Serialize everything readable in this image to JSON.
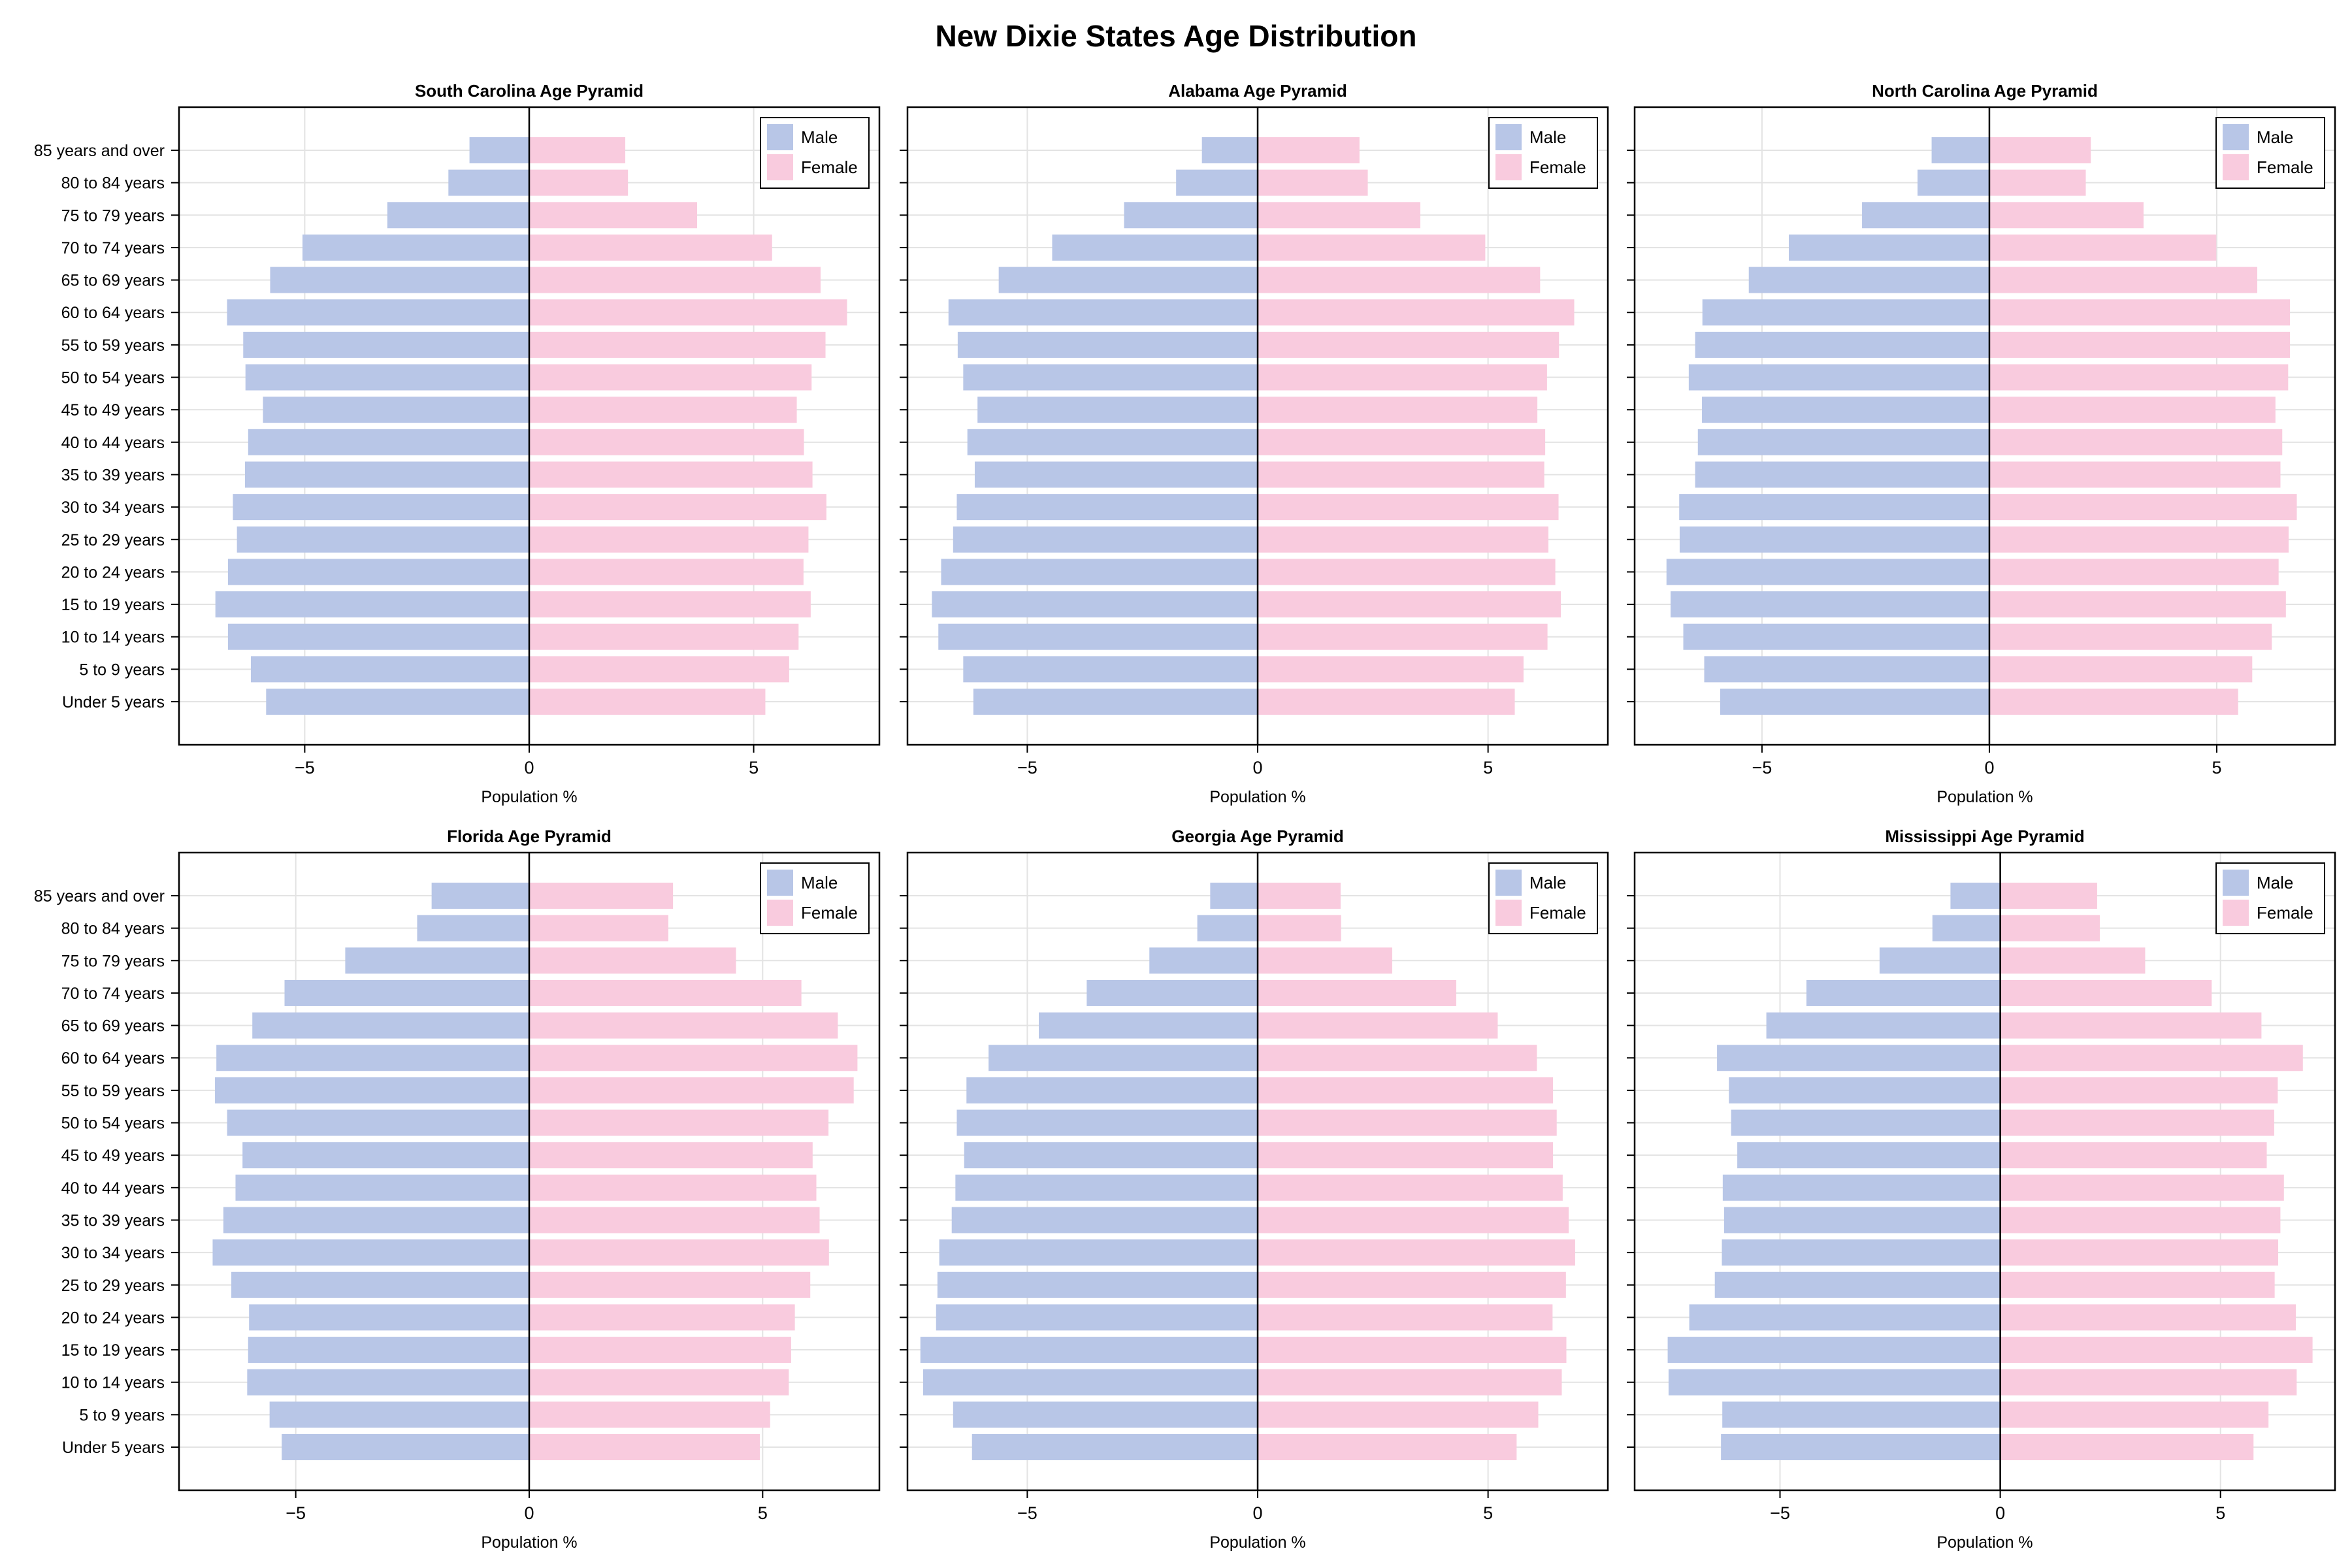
{
  "figure": {
    "title": "New Dixie States Age Distribution"
  },
  "colors": {
    "male": "#b8c6e7",
    "female": "#f9cbde",
    "grid": "#e3e3e3",
    "frame": "#000000"
  },
  "chart_data": [
    {
      "type": "bar",
      "title": "South Carolina Age Pyramid",
      "xlabel": "Population %",
      "xlim": [
        -7.8,
        7.8
      ],
      "xticks": [
        -5,
        0,
        5
      ],
      "xtick_labels": [
        "−5",
        "0",
        "5"
      ],
      "legend": "top-right",
      "categories": [
        "85 years and over",
        "80 to 84 years",
        "75 to 79 years",
        "70 to 74 years",
        "65 to 69 years",
        "60 to 64 years",
        "55 to 59 years",
        "50 to 54 years",
        "45 to 49 years",
        "40 to 44 years",
        "35 to 39 years",
        "30 to 34 years",
        "25 to 29 years",
        "20 to 24 years",
        "15 to 19 years",
        "10 to 14 years",
        "5 to 9 years",
        "Under 5 years"
      ],
      "series": [
        {
          "name": "Male",
          "values": [
            -1.33,
            -1.8,
            -3.16,
            -5.05,
            -5.77,
            -6.73,
            -6.37,
            -6.32,
            -5.93,
            -6.26,
            -6.33,
            -6.6,
            -6.51,
            -6.71,
            -6.99,
            -6.71,
            -6.2,
            -5.86
          ]
        },
        {
          "name": "Female",
          "values": [
            2.14,
            2.2,
            3.74,
            5.41,
            6.49,
            7.08,
            6.6,
            6.29,
            5.96,
            6.12,
            6.31,
            6.62,
            6.22,
            6.11,
            6.27,
            6.0,
            5.79,
            5.26
          ]
        }
      ]
    },
    {
      "type": "bar",
      "title": "Alabama Age Pyramid",
      "xlabel": "Population %",
      "xlim": [
        -7.6,
        7.6
      ],
      "xticks": [
        -5,
        0,
        5
      ],
      "xtick_labels": [
        "−5",
        "0",
        "5"
      ],
      "legend": "top-right",
      "categories": [
        "85 years and over",
        "80 to 84 years",
        "75 to 79 years",
        "70 to 74 years",
        "65 to 69 years",
        "60 to 64 years",
        "55 to 59 years",
        "50 to 54 years",
        "45 to 49 years",
        "40 to 44 years",
        "35 to 39 years",
        "30 to 34 years",
        "25 to 29 years",
        "20 to 24 years",
        "15 to 19 years",
        "10 to 14 years",
        "5 to 9 years",
        "Under 5 years"
      ],
      "series": [
        {
          "name": "Male",
          "values": [
            -1.21,
            -1.77,
            -2.9,
            -4.46,
            -5.62,
            -6.71,
            -6.51,
            -6.39,
            -6.08,
            -6.3,
            -6.14,
            -6.53,
            -6.61,
            -6.87,
            -7.07,
            -6.93,
            -6.39,
            -6.17
          ]
        },
        {
          "name": "Female",
          "values": [
            2.21,
            2.39,
            3.53,
            4.94,
            6.13,
            6.87,
            6.54,
            6.28,
            6.07,
            6.24,
            6.22,
            6.53,
            6.31,
            6.46,
            6.58,
            6.29,
            5.77,
            5.58
          ]
        }
      ]
    },
    {
      "type": "bar",
      "title": "North Carolina Age Pyramid",
      "xlabel": "Population %",
      "xlim": [
        -7.8,
        7.6
      ],
      "xticks": [
        -5,
        0,
        5
      ],
      "xtick_labels": [
        "−5",
        "0",
        "5"
      ],
      "legend": "top-right",
      "categories": [
        "85 years and over",
        "80 to 84 years",
        "75 to 79 years",
        "70 to 74 years",
        "65 to 69 years",
        "60 to 64 years",
        "55 to 59 years",
        "50 to 54 years",
        "45 to 49 years",
        "40 to 44 years",
        "35 to 39 years",
        "30 to 34 years",
        "25 to 29 years",
        "20 to 24 years",
        "15 to 19 years",
        "10 to 14 years",
        "5 to 9 years",
        "Under 5 years"
      ],
      "series": [
        {
          "name": "Male",
          "values": [
            -1.27,
            -1.58,
            -2.8,
            -4.41,
            -5.29,
            -6.31,
            -6.47,
            -6.61,
            -6.32,
            -6.41,
            -6.47,
            -6.82,
            -6.81,
            -7.1,
            -7.01,
            -6.73,
            -6.27,
            -5.92
          ]
        },
        {
          "name": "Female",
          "values": [
            2.23,
            2.12,
            3.39,
            4.99,
            5.89,
            6.61,
            6.61,
            6.57,
            6.29,
            6.44,
            6.4,
            6.76,
            6.58,
            6.36,
            6.52,
            6.21,
            5.78,
            5.47
          ]
        }
      ]
    },
    {
      "type": "bar",
      "title": "Florida Age Pyramid",
      "xlabel": "Population %",
      "xlim": [
        -7.5,
        7.5
      ],
      "xticks": [
        -5,
        0,
        5
      ],
      "xtick_labels": [
        "−5",
        "0",
        "5"
      ],
      "legend": "top-right",
      "categories": [
        "85 years and over",
        "80 to 84 years",
        "75 to 79 years",
        "70 to 74 years",
        "65 to 69 years",
        "60 to 64 years",
        "55 to 59 years",
        "50 to 54 years",
        "45 to 49 years",
        "40 to 44 years",
        "35 to 39 years",
        "30 to 34 years",
        "25 to 29 years",
        "20 to 24 years",
        "15 to 19 years",
        "10 to 14 years",
        "5 to 9 years",
        "Under 5 years"
      ],
      "series": [
        {
          "name": "Male",
          "values": [
            -2.09,
            -2.4,
            -3.94,
            -5.24,
            -5.93,
            -6.7,
            -6.73,
            -6.47,
            -6.14,
            -6.29,
            -6.55,
            -6.78,
            -6.38,
            -6.0,
            -6.02,
            -6.04,
            -5.56,
            -5.3
          ]
        },
        {
          "name": "Female",
          "values": [
            3.08,
            2.98,
            4.43,
            5.83,
            6.61,
            7.03,
            6.95,
            6.41,
            6.07,
            6.15,
            6.22,
            6.42,
            6.02,
            5.69,
            5.61,
            5.56,
            5.16,
            4.94
          ]
        }
      ]
    },
    {
      "type": "bar",
      "title": "Georgia Age Pyramid",
      "xlabel": "Population %",
      "xlim": [
        -7.6,
        7.6
      ],
      "xticks": [
        -5,
        0,
        5
      ],
      "xtick_labels": [
        "−5",
        "0",
        "5"
      ],
      "legend": "top-right",
      "categories": [
        "85 years and over",
        "80 to 84 years",
        "75 to 79 years",
        "70 to 74 years",
        "65 to 69 years",
        "60 to 64 years",
        "55 to 59 years",
        "50 to 54 years",
        "45 to 49 years",
        "40 to 44 years",
        "35 to 39 years",
        "30 to 34 years",
        "25 to 29 years",
        "20 to 24 years",
        "15 to 19 years",
        "10 to 14 years",
        "5 to 9 years",
        "Under 5 years"
      ],
      "series": [
        {
          "name": "Male",
          "values": [
            -1.03,
            -1.31,
            -2.35,
            -3.71,
            -4.75,
            -5.84,
            -6.32,
            -6.53,
            -6.37,
            -6.56,
            -6.64,
            -6.91,
            -6.95,
            -6.98,
            -7.32,
            -7.26,
            -6.61,
            -6.2
          ]
        },
        {
          "name": "Female",
          "values": [
            1.8,
            1.81,
            2.92,
            4.31,
            5.21,
            6.06,
            6.41,
            6.49,
            6.41,
            6.62,
            6.75,
            6.89,
            6.69,
            6.4,
            6.7,
            6.6,
            6.09,
            5.62
          ]
        }
      ]
    },
    {
      "type": "bar",
      "title": "Mississippi Age Pyramid",
      "xlabel": "Population %",
      "xlim": [
        -8.3,
        7.6
      ],
      "xticks": [
        -5,
        0,
        5
      ],
      "xtick_labels": [
        "−5",
        "0",
        "5"
      ],
      "legend": "top-right",
      "categories": [
        "85 years and over",
        "80 to 84 years",
        "75 to 79 years",
        "70 to 74 years",
        "65 to 69 years",
        "60 to 64 years",
        "55 to 59 years",
        "50 to 54 years",
        "45 to 49 years",
        "40 to 44 years",
        "35 to 39 years",
        "30 to 34 years",
        "25 to 29 years",
        "20 to 24 years",
        "15 to 19 years",
        "10 to 14 years",
        "5 to 9 years",
        "Under 5 years"
      ],
      "series": [
        {
          "name": "Male",
          "values": [
            -1.13,
            -1.54,
            -2.74,
            -4.4,
            -5.31,
            -6.43,
            -6.16,
            -6.11,
            -5.97,
            -6.3,
            -6.27,
            -6.32,
            -6.48,
            -7.06,
            -7.55,
            -7.53,
            -6.31,
            -6.34
          ]
        },
        {
          "name": "Female",
          "values": [
            2.2,
            2.26,
            3.29,
            4.8,
            5.93,
            6.87,
            6.3,
            6.22,
            6.05,
            6.44,
            6.36,
            6.31,
            6.23,
            6.71,
            7.09,
            6.73,
            6.09,
            5.75
          ]
        }
      ]
    }
  ]
}
